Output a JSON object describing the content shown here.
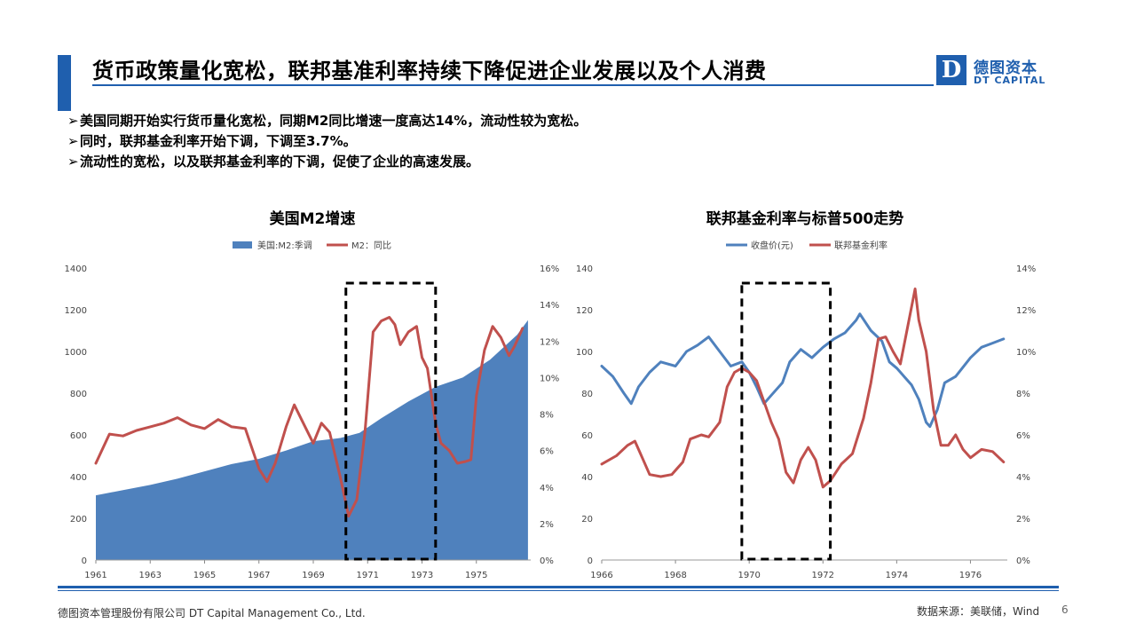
{
  "header": {
    "title": "货币政策量化宽松，联邦基准利率持续下降促进企业发展以及个人消费",
    "logo_mark": "D",
    "logo_cn": "德图资本",
    "logo_en": "DT CAPITAL"
  },
  "bullets": [
    "美国同期开始实行货币量化宽松，同期M2同比增速一度高达14%，流动性较为宽松。",
    "同时，联邦基金利率开始下调，下调至3.7%。",
    "流动性的宽松，以及联邦基金利率的下调，促使了企业的高速发展。"
  ],
  "bullet_marker": "➢",
  "colors": {
    "accent": "#1f5fae",
    "m2_area": "#4f81bd",
    "red_line": "#c0504d",
    "sp_line": "#4f81bd"
  },
  "chart_data": [
    {
      "type": "area",
      "title": "美国M2增速",
      "legend": [
        "美国:M2:季调",
        "M2：同比"
      ],
      "legend_position": "top",
      "x_ticks": [
        "1961",
        "1963",
        "1965",
        "1967",
        "1969",
        "1971",
        "1973",
        "1975"
      ],
      "y_left_ticks": [
        "0",
        "200",
        "400",
        "600",
        "800",
        "1000",
        "1200",
        "1400"
      ],
      "y_right_ticks": [
        "0%",
        "2%",
        "4%",
        "6%",
        "8%",
        "10%",
        "12%",
        "14%",
        "16%"
      ],
      "ylim_left": [
        0,
        1400
      ],
      "ylim_right": [
        0,
        16
      ],
      "xlim": [
        1961,
        1977
      ],
      "grid": false,
      "series": [
        {
          "name": "美国:M2:季调",
          "axis": "left",
          "style": "area",
          "points": [
            [
              1961,
              310
            ],
            [
              1962,
              335
            ],
            [
              1963,
              360
            ],
            [
              1964,
              390
            ],
            [
              1965,
              425
            ],
            [
              1966,
              460
            ],
            [
              1967,
              485
            ],
            [
              1968,
              525
            ],
            [
              1969,
              570
            ],
            [
              1970,
              585
            ],
            [
              1970.7,
              610
            ],
            [
              1971.5,
              680
            ],
            [
              1972.5,
              760
            ],
            [
              1973.5,
              830
            ],
            [
              1974.5,
              875
            ],
            [
              1975.5,
              960
            ],
            [
              1976.5,
              1080
            ],
            [
              1976.9,
              1150
            ]
          ]
        },
        {
          "name": "M2：同比",
          "axis": "right",
          "style": "line",
          "points": [
            [
              1961,
              5.3
            ],
            [
              1961.5,
              6.9
            ],
            [
              1962,
              6.8
            ],
            [
              1962.5,
              7.1
            ],
            [
              1963,
              7.3
            ],
            [
              1963.5,
              7.5
            ],
            [
              1964,
              7.8
            ],
            [
              1964.5,
              7.4
            ],
            [
              1965,
              7.2
            ],
            [
              1965.5,
              7.7
            ],
            [
              1966,
              7.3
            ],
            [
              1966.5,
              7.2
            ],
            [
              1967,
              5.0
            ],
            [
              1967.3,
              4.3
            ],
            [
              1967.6,
              5.3
            ],
            [
              1968,
              7.3
            ],
            [
              1968.3,
              8.5
            ],
            [
              1968.6,
              7.6
            ],
            [
              1969,
              6.4
            ],
            [
              1969.3,
              7.5
            ],
            [
              1969.6,
              7.0
            ],
            [
              1970,
              4.5
            ],
            [
              1970.3,
              2.4
            ],
            [
              1970.6,
              3.3
            ],
            [
              1970.9,
              7.0
            ],
            [
              1971.2,
              12.5
            ],
            [
              1971.5,
              13.1
            ],
            [
              1971.8,
              13.3
            ],
            [
              1972,
              12.9
            ],
            [
              1972.2,
              11.8
            ],
            [
              1972.5,
              12.5
            ],
            [
              1972.8,
              12.8
            ],
            [
              1973,
              11.1
            ],
            [
              1973.2,
              10.5
            ],
            [
              1973.5,
              7.5
            ],
            [
              1973.7,
              6.4
            ],
            [
              1974,
              6.0
            ],
            [
              1974.3,
              5.3
            ],
            [
              1974.6,
              5.4
            ],
            [
              1974.8,
              5.5
            ],
            [
              1975,
              9.0
            ],
            [
              1975.3,
              11.5
            ],
            [
              1975.6,
              12.8
            ],
            [
              1975.9,
              12.2
            ],
            [
              1976.2,
              11.2
            ],
            [
              1976.4,
              11.7
            ],
            [
              1976.7,
              12.7
            ]
          ]
        }
      ],
      "highlight_range": [
        1970.2,
        1973.5
      ]
    },
    {
      "type": "line",
      "title": "联邦基金利率与标普500走势",
      "legend": [
        "收盘价(元)",
        "联邦基金利率"
      ],
      "legend_position": "top",
      "x_ticks": [
        "1966",
        "1968",
        "1970",
        "1972",
        "1974",
        "1976"
      ],
      "y_left_ticks": [
        "0",
        "20",
        "40",
        "60",
        "80",
        "100",
        "120",
        "140"
      ],
      "y_right_ticks": [
        "0%",
        "2%",
        "4%",
        "6%",
        "8%",
        "10%",
        "12%",
        "14%"
      ],
      "ylim_left": [
        0,
        140
      ],
      "ylim_right": [
        0,
        14
      ],
      "xlim": [
        1966,
        1977
      ],
      "grid": false,
      "series": [
        {
          "name": "收盘价(元)",
          "axis": "left",
          "style": "line",
          "points": [
            [
              1966,
              93
            ],
            [
              1966.3,
              88
            ],
            [
              1966.6,
              80
            ],
            [
              1966.8,
              75
            ],
            [
              1967,
              83
            ],
            [
              1967.3,
              90
            ],
            [
              1967.6,
              95
            ],
            [
              1968,
              93
            ],
            [
              1968.3,
              100
            ],
            [
              1968.6,
              103
            ],
            [
              1968.9,
              107
            ],
            [
              1969.2,
              100
            ],
            [
              1969.5,
              93
            ],
            [
              1969.8,
              95
            ],
            [
              1970,
              90
            ],
            [
              1970.2,
              83
            ],
            [
              1970.4,
              75
            ],
            [
              1970.6,
              79
            ],
            [
              1970.9,
              85
            ],
            [
              1971.1,
              95
            ],
            [
              1971.4,
              101
            ],
            [
              1971.7,
              97
            ],
            [
              1972,
              102
            ],
            [
              1972.3,
              106
            ],
            [
              1972.6,
              109
            ],
            [
              1972.9,
              115
            ],
            [
              1973,
              118
            ],
            [
              1973.3,
              110
            ],
            [
              1973.6,
              105
            ],
            [
              1973.8,
              95
            ],
            [
              1974,
              92
            ],
            [
              1974.2,
              88
            ],
            [
              1974.4,
              84
            ],
            [
              1974.6,
              77
            ],
            [
              1974.8,
              66
            ],
            [
              1974.9,
              64
            ],
            [
              1975.1,
              72
            ],
            [
              1975.3,
              85
            ],
            [
              1975.6,
              88
            ],
            [
              1976,
              97
            ],
            [
              1976.3,
              102
            ],
            [
              1976.6,
              104
            ],
            [
              1976.9,
              106
            ]
          ]
        },
        {
          "name": "联邦基金利率",
          "axis": "right",
          "style": "line",
          "points": [
            [
              1966,
              4.6
            ],
            [
              1966.4,
              5.0
            ],
            [
              1966.7,
              5.5
            ],
            [
              1966.9,
              5.7
            ],
            [
              1967.1,
              4.9
            ],
            [
              1967.3,
              4.1
            ],
            [
              1967.6,
              4.0
            ],
            [
              1967.9,
              4.1
            ],
            [
              1968.2,
              4.7
            ],
            [
              1968.4,
              5.8
            ],
            [
              1968.7,
              6.0
            ],
            [
              1968.9,
              5.9
            ],
            [
              1969.2,
              6.6
            ],
            [
              1969.4,
              8.3
            ],
            [
              1969.6,
              9.0
            ],
            [
              1969.8,
              9.2
            ],
            [
              1970,
              9.0
            ],
            [
              1970.2,
              8.6
            ],
            [
              1970.4,
              7.6
            ],
            [
              1970.6,
              6.6
            ],
            [
              1970.8,
              5.8
            ],
            [
              1971,
              4.2
            ],
            [
              1971.2,
              3.7
            ],
            [
              1971.4,
              4.8
            ],
            [
              1971.6,
              5.4
            ],
            [
              1971.8,
              4.8
            ],
            [
              1972,
              3.5
            ],
            [
              1972.2,
              3.8
            ],
            [
              1972.5,
              4.6
            ],
            [
              1972.8,
              5.1
            ],
            [
              1973.1,
              6.8
            ],
            [
              1973.3,
              8.5
            ],
            [
              1973.5,
              10.6
            ],
            [
              1973.7,
              10.7
            ],
            [
              1973.9,
              10.0
            ],
            [
              1974.1,
              9.4
            ],
            [
              1974.3,
              11.2
            ],
            [
              1974.5,
              13.0
            ],
            [
              1974.6,
              11.5
            ],
            [
              1974.8,
              10.0
            ],
            [
              1975,
              7.2
            ],
            [
              1975.2,
              5.5
            ],
            [
              1975.4,
              5.5
            ],
            [
              1975.6,
              6.0
            ],
            [
              1975.8,
              5.3
            ],
            [
              1976,
              4.9
            ],
            [
              1976.3,
              5.3
            ],
            [
              1976.6,
              5.2
            ],
            [
              1976.9,
              4.7
            ]
          ]
        }
      ],
      "highlight_range": [
        1969.8,
        1972.2
      ]
    }
  ],
  "footer": {
    "company": "德图资本管理股份有限公司 DT Capital Management Co., Ltd.",
    "source": "数据来源：美联储，Wind",
    "page": "6"
  }
}
